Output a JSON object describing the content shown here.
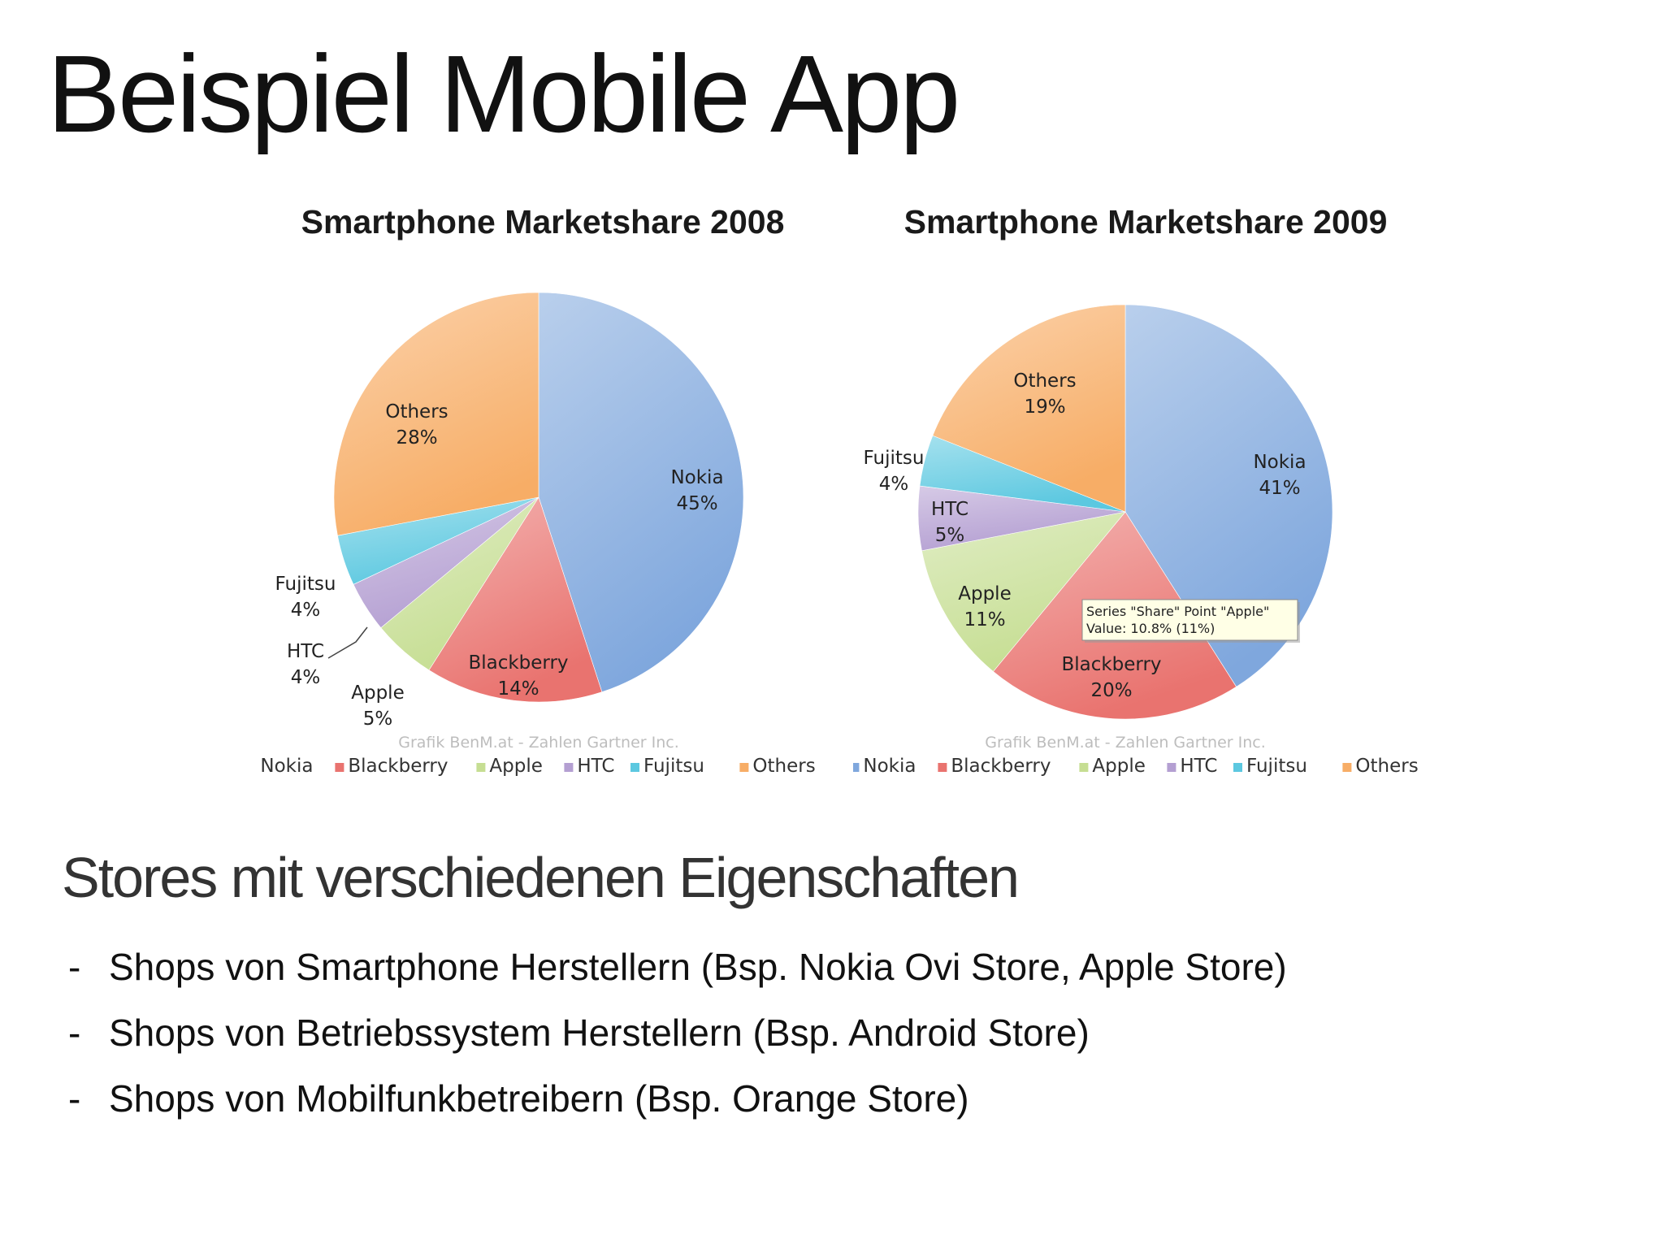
{
  "slide": {
    "title": "Beispiel Mobile App",
    "subtitle": "Stores mit verschiedenen Eigenschaften",
    "bullets": [
      "Shops von Smartphone Herstellern (Bsp. Nokia Ovi Store, Apple Store)",
      "Shops von Betriebssystem Herstellern (Bsp. Android Store)",
      "Shops von Mobilfunkbetreibern (Bsp. Orange Store)"
    ],
    "bullet_marker": "-"
  },
  "colors": {
    "Nokia": "#7fa7dd",
    "Blackberry": "#e9736f",
    "Apple": "#c6de93",
    "HTC": "#b49fd2",
    "Fujitsu": "#5cc8e0",
    "Others": "#f7ad66"
  },
  "chart_data": [
    {
      "type": "pie",
      "title": "Smartphone Marketshare 2008",
      "categories": [
        "Nokia",
        "Blackberry",
        "Apple",
        "HTC",
        "Fujitsu",
        "Others"
      ],
      "values": [
        45,
        14,
        5,
        4,
        4,
        28
      ],
      "data_labels": [
        "45%",
        "14%",
        "5%",
        "4%",
        "4%",
        "28%"
      ],
      "source_note": "Grafik BenM.at - Zahlen Gartner Inc.",
      "legend_position": "bottom"
    },
    {
      "type": "pie",
      "title": "Smartphone Marketshare 2009",
      "categories": [
        "Nokia",
        "Blackberry",
        "Apple",
        "HTC",
        "Fujitsu",
        "Others"
      ],
      "values": [
        41,
        20,
        11,
        5,
        4,
        19
      ],
      "data_labels": [
        "41%",
        "20%",
        "11%",
        "5%",
        "4%",
        "19%"
      ],
      "source_note": "Grafik BenM.at - Zahlen Gartner Inc.",
      "legend_position": "bottom",
      "tooltip": {
        "line1": "Series \"Share\" Point \"Apple\"",
        "line2": "Value: 10.8% (11%)"
      }
    }
  ]
}
